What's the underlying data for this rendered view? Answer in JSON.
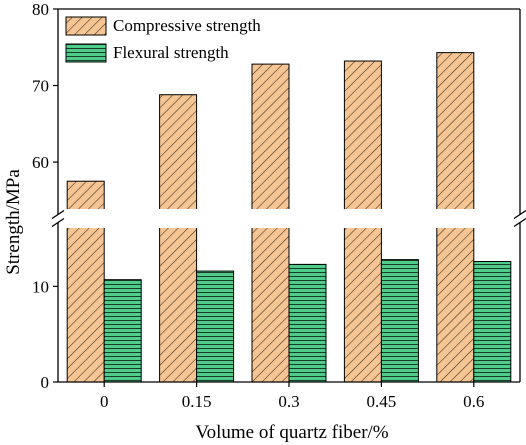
{
  "chart_data": {
    "type": "bar",
    "title": "",
    "xlabel": "Volume of quartz fiber/%",
    "ylabel": "Strength/MPa",
    "categories": [
      "0",
      "0.15",
      "0.3",
      "0.45",
      "0.6"
    ],
    "series": [
      {
        "name": "Compressive strength",
        "values": [
          57.5,
          68.8,
          72.8,
          73.2,
          74.3
        ],
        "color": "#f5c593",
        "pattern": "diagonal-hatch"
      },
      {
        "name": "Flexural strength",
        "values": [
          10.7,
          11.6,
          12.3,
          12.8,
          12.6
        ],
        "color": "#4dcc8a",
        "pattern": "horizontal-lines"
      }
    ],
    "y_axis": {
      "broken": true,
      "lower_segment": {
        "range": [
          0,
          16
        ],
        "ticks": [
          0,
          10
        ]
      },
      "upper_segment": {
        "range": [
          54,
          80
        ],
        "ticks": [
          60,
          70,
          80
        ]
      }
    },
    "legend": {
      "position": "top-left"
    },
    "grid": false
  }
}
